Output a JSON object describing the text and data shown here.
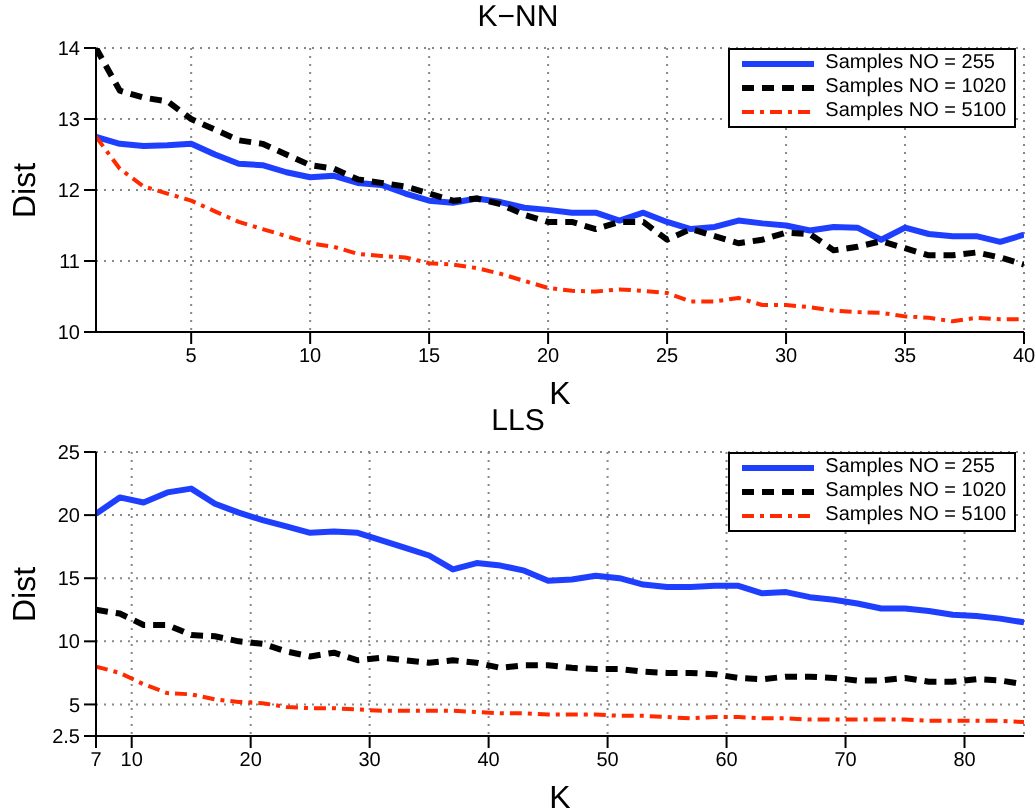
{
  "chart_data": [
    {
      "type": "line",
      "title": "K−NN",
      "xlabel": "K",
      "ylabel": "Dist",
      "x": [
        1,
        2,
        3,
        4,
        5,
        6,
        7,
        8,
        9,
        10,
        11,
        12,
        13,
        14,
        15,
        16,
        17,
        18,
        19,
        20,
        21,
        22,
        23,
        24,
        25,
        26,
        27,
        28,
        29,
        30,
        31,
        32,
        33,
        34,
        35,
        36,
        37,
        38,
        39,
        40
      ],
      "xlim": [
        1,
        40
      ],
      "xticks": [
        5,
        10,
        15,
        20,
        25,
        30,
        35,
        40
      ],
      "ylim": [
        10,
        14
      ],
      "yticks": [
        10,
        11,
        12,
        13,
        14
      ],
      "grid": true,
      "legend": "top right",
      "series": [
        {
          "name": "Samples NO = 255",
          "color": "#1f3fff",
          "line_style": "solid",
          "values": [
            12.75,
            12.65,
            12.62,
            12.63,
            12.65,
            12.5,
            12.37,
            12.35,
            12.25,
            12.18,
            12.2,
            12.1,
            12.07,
            11.95,
            11.85,
            11.82,
            11.88,
            11.83,
            11.75,
            11.72,
            11.68,
            11.68,
            11.57,
            11.68,
            11.55,
            11.45,
            11.48,
            11.57,
            11.53,
            11.5,
            11.43,
            11.48,
            11.47,
            11.3,
            11.47,
            11.38,
            11.35,
            11.35,
            11.27,
            11.37
          ]
        },
        {
          "name": "Samples NO = 1020",
          "color": "#000000",
          "line_style": "dashed",
          "values": [
            14,
            13.4,
            13.3,
            13.25,
            13.0,
            12.85,
            12.7,
            12.65,
            12.5,
            12.35,
            12.3,
            12.15,
            12.1,
            12.05,
            11.95,
            11.85,
            11.88,
            11.8,
            11.65,
            11.55,
            11.55,
            11.45,
            11.55,
            11.55,
            11.3,
            11.45,
            11.35,
            11.25,
            11.3,
            11.4,
            11.38,
            11.15,
            11.2,
            11.28,
            11.18,
            11.08,
            11.08,
            11.12,
            11.05,
            10.95
          ]
        },
        {
          "name": "Samples NO = 5100",
          "color": "#ff2a00",
          "line_style": "dashed",
          "values": [
            12.75,
            12.3,
            12.05,
            11.95,
            11.85,
            11.7,
            11.55,
            11.45,
            11.35,
            11.25,
            11.2,
            11.1,
            11.07,
            11.05,
            10.97,
            10.95,
            10.9,
            10.82,
            10.72,
            10.62,
            10.58,
            10.57,
            10.6,
            10.58,
            10.55,
            10.43,
            10.43,
            10.48,
            10.38,
            10.38,
            10.35,
            10.3,
            10.28,
            10.27,
            10.22,
            10.2,
            10.15,
            10.2,
            10.18,
            10.18
          ]
        }
      ]
    },
    {
      "type": "line",
      "title": "LLS",
      "xlabel": "K",
      "ylabel": "Dist",
      "x": [
        7,
        9,
        11,
        13,
        15,
        17,
        19,
        21,
        23,
        25,
        27,
        29,
        31,
        33,
        35,
        37,
        39,
        41,
        43,
        45,
        47,
        49,
        51,
        53,
        55,
        57,
        59,
        61,
        63,
        65,
        67,
        69,
        71,
        73,
        75,
        77,
        79,
        81,
        83,
        85
      ],
      "xlim": [
        7,
        85
      ],
      "xticks": [
        7,
        10,
        20,
        30,
        40,
        50,
        60,
        70,
        80
      ],
      "ylim": [
        2.5,
        25
      ],
      "yticks": [
        2.5,
        5,
        10,
        15,
        20,
        25
      ],
      "grid": true,
      "legend": "top right",
      "series": [
        {
          "name": "Samples NO = 255",
          "color": "#1f3fff",
          "line_style": "solid",
          "values": [
            20.1,
            21.4,
            21.0,
            21.8,
            22.1,
            20.9,
            20.2,
            19.6,
            19.1,
            18.6,
            18.7,
            18.6,
            18.0,
            17.4,
            16.8,
            15.7,
            16.2,
            16.0,
            15.6,
            14.8,
            14.9,
            15.2,
            15.0,
            14.5,
            14.3,
            14.3,
            14.4,
            14.4,
            13.8,
            13.9,
            13.5,
            13.3,
            13.0,
            12.6,
            12.6,
            12.4,
            12.1,
            12.0,
            11.8,
            11.5
          ]
        },
        {
          "name": "Samples NO = 1020",
          "color": "#000000",
          "line_style": "dashed",
          "values": [
            12.5,
            12.2,
            11.3,
            11.3,
            10.5,
            10.4,
            10.0,
            9.8,
            9.2,
            8.8,
            9.1,
            8.5,
            8.7,
            8.5,
            8.3,
            8.5,
            8.3,
            7.9,
            8.1,
            8.1,
            7.9,
            7.8,
            7.8,
            7.6,
            7.5,
            7.5,
            7.4,
            7.1,
            7.0,
            7.2,
            7.2,
            7.1,
            6.9,
            6.9,
            7.1,
            6.8,
            6.8,
            7.0,
            6.9,
            6.6
          ]
        },
        {
          "name": "Samples NO = 5100",
          "color": "#ff2a00",
          "line_style": "dashed",
          "values": [
            8.0,
            7.5,
            6.6,
            5.9,
            5.8,
            5.4,
            5.2,
            5.1,
            4.8,
            4.7,
            4.7,
            4.6,
            4.5,
            4.5,
            4.5,
            4.5,
            4.4,
            4.3,
            4.3,
            4.2,
            4.2,
            4.2,
            4.1,
            4.1,
            4.0,
            3.9,
            4.0,
            4.0,
            3.9,
            3.9,
            3.8,
            3.8,
            3.8,
            3.8,
            3.8,
            3.7,
            3.7,
            3.7,
            3.7,
            3.6
          ]
        }
      ]
    }
  ]
}
